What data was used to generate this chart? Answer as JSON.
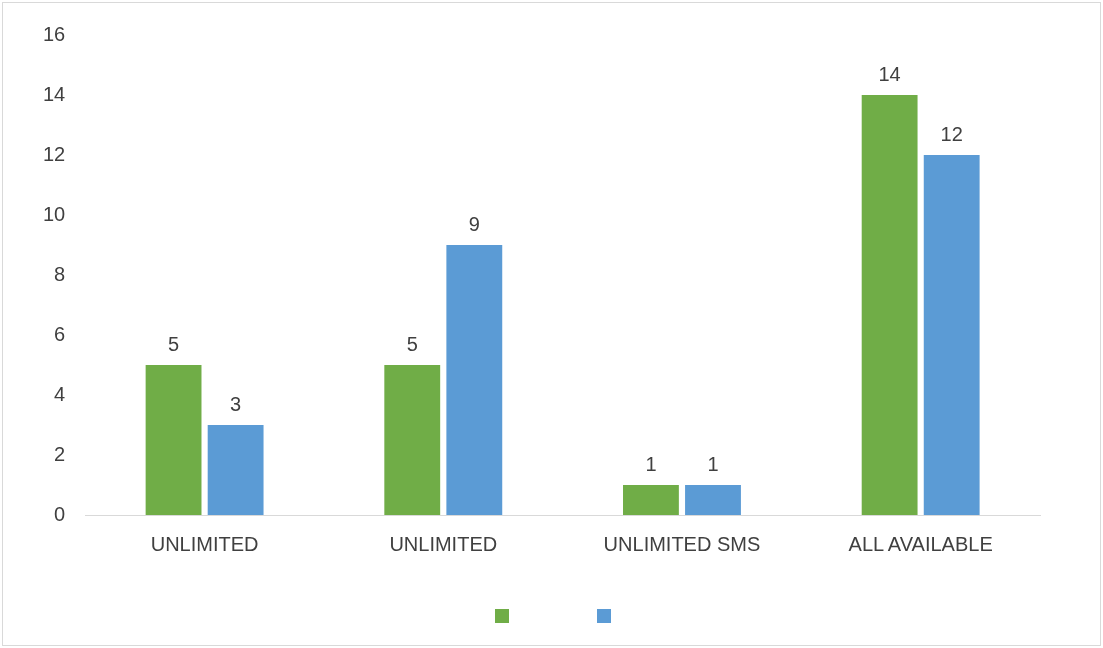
{
  "chart_data": {
    "type": "bar",
    "categories": [
      "UNLIMITED",
      "UNLIMITED",
      "UNLIMITED SMS",
      "ALL AVAILABLE"
    ],
    "series": [
      {
        "color": "#70ad47",
        "values": [
          5,
          5,
          1,
          14
        ]
      },
      {
        "color": "#5b9bd5",
        "values": [
          3,
          9,
          1,
          12
        ]
      }
    ],
    "ylim": [
      0,
      16
    ],
    "yticks": [
      0,
      2,
      4,
      6,
      8,
      10,
      12,
      14,
      16
    ],
    "grid": false,
    "data_labels": true
  }
}
